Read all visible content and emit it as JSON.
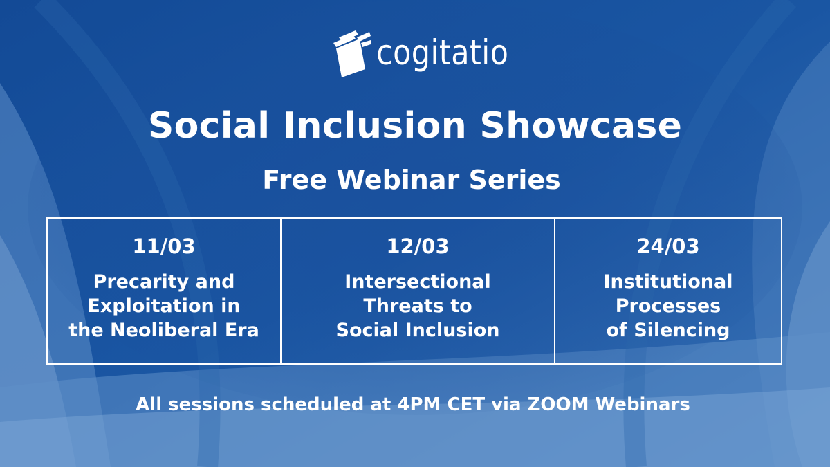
{
  "brand": {
    "name": "cogitatio",
    "logo_icon": "open-book-icon"
  },
  "title": "Social Inclusion Showcase",
  "subtitle": "Free Webinar Series",
  "sessions": [
    {
      "date": "11/03",
      "title_lines": [
        "Precarity and",
        "Exploitation in",
        "the Neoliberal Era"
      ]
    },
    {
      "date": "12/03",
      "title_lines": [
        "Intersectional",
        "Threats to",
        "Social Inclusion"
      ]
    },
    {
      "date": "24/03",
      "title_lines": [
        "Institutional",
        "Processes",
        "of Silencing"
      ]
    }
  ],
  "footer": "All sessions scheduled at 4PM CET via ZOOM Webinars",
  "colors": {
    "background_dark": "#0f3f86",
    "background_mid": "#1c5aa6",
    "background_light": "#5f8fc6",
    "text": "#ffffff"
  }
}
